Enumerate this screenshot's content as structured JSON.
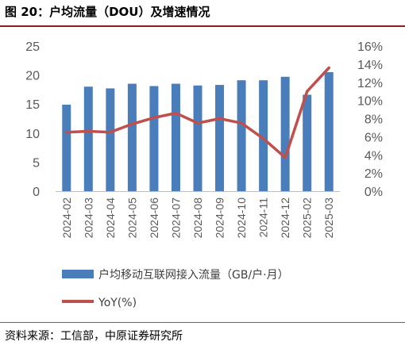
{
  "title": "图 20：户均流量（DOU）及增速情况",
  "source": "资料来源：工信部，中原证券研究所",
  "chart_data": {
    "type": "bar+line",
    "categories": [
      "2024-02",
      "2024-03",
      "2024-04",
      "2024-05",
      "2024-06",
      "2024-07",
      "2024-08",
      "2024-09",
      "2024-10",
      "2024-11",
      "2024-12",
      "2025-02",
      "2025-03"
    ],
    "series": [
      {
        "name": "户均移动互联网接入流量（GB/户·月）",
        "type": "bar",
        "axis": "left",
        "color": "#4a7ebb",
        "values": [
          14.9,
          18.0,
          17.7,
          18.5,
          18.1,
          18.5,
          18.2,
          18.3,
          19.1,
          19.1,
          19.7,
          16.6,
          20.5
        ]
      },
      {
        "name": "YoY(%)",
        "type": "line",
        "axis": "right",
        "color": "#c0504d",
        "values": [
          6.5,
          6.6,
          6.5,
          7.4,
          8.1,
          8.6,
          7.5,
          8.0,
          7.5,
          5.8,
          3.7,
          11.0,
          13.6
        ]
      }
    ],
    "y_left": {
      "min": 0,
      "max": 25,
      "ticks": [
        "0",
        "5",
        "10",
        "15",
        "20",
        "25"
      ]
    },
    "y_right": {
      "min": 0,
      "max": 16,
      "ticks": [
        "0%",
        "2%",
        "4%",
        "6%",
        "8%",
        "10%",
        "12%",
        "14%",
        "16%"
      ]
    },
    "grid": false,
    "legend_position": "bottom"
  }
}
